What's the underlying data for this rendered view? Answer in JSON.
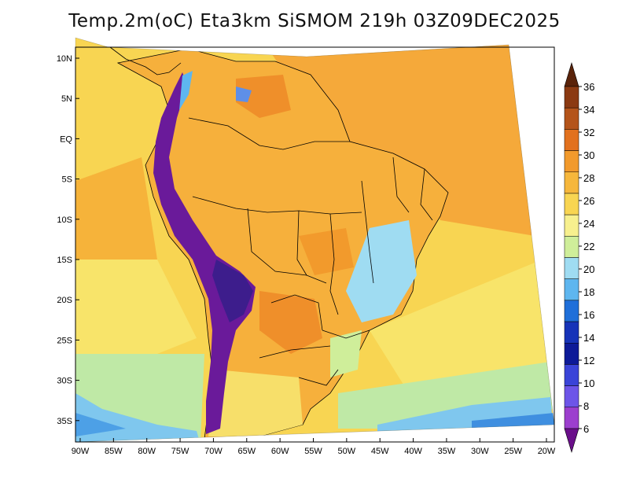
{
  "title": "Temp.2m(oC) Eta3km SiSMOM 219h 03Z09DEC2025",
  "map": {
    "variable": "2 m temperature",
    "units": "oC",
    "lat_labels": [
      "10N",
      "5N",
      "EQ",
      "5S",
      "10S",
      "15S",
      "20S",
      "25S",
      "30S",
      "35S"
    ],
    "lon_labels": [
      "90W",
      "85W",
      "80W",
      "75W",
      "70W",
      "65W",
      "60W",
      "55W",
      "50W",
      "45W",
      "40W",
      "35W",
      "30W",
      "25W",
      "20W"
    ]
  },
  "colorbar": {
    "labels": [
      "36",
      "34",
      "32",
      "30",
      "28",
      "26",
      "24",
      "22",
      "20",
      "18",
      "16",
      "14",
      "12",
      "10",
      "8",
      "6"
    ],
    "colors": [
      "#6b2a0e",
      "#8b3a12",
      "#b4541a",
      "#e2711e",
      "#f29a2c",
      "#f6b73c",
      "#f8d552",
      "#f7f08e",
      "#cfee9a",
      "#9fdcf2",
      "#5eb6ef",
      "#1f6fd9",
      "#1633b8",
      "#0d1a98",
      "#3a44d8",
      "#6d55e8",
      "#9c3fce",
      "#6a138f"
    ],
    "top_arrow_color": "#5a230a",
    "bottom_arrow_color": "#6a0f8a"
  },
  "palette": {
    "ocean_warm": "#f5a93a",
    "ocean_mid": "#f8d552",
    "ocean_cool": "#f7ef8f",
    "ocean_south": "#bfe9a6",
    "ocean_cold": "#7fc7ee",
    "land_hot": "#f29a2c",
    "land_warm": "#f6b73c",
    "andes_cold": "#6a1a9a",
    "highland_cool": "#8ccde9",
    "border": "#000000"
  }
}
